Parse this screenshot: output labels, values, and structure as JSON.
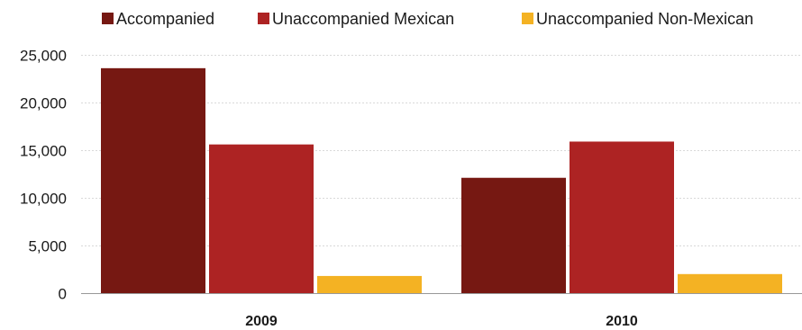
{
  "chart_data": {
    "type": "bar",
    "categories": [
      "2009",
      "2010"
    ],
    "series": [
      {
        "name": "Accompanied",
        "color": "#761812",
        "values": [
          23600,
          12100
        ]
      },
      {
        "name": "Unaccompanied Mexican",
        "color": "#ad2323",
        "values": [
          15600,
          15900
        ]
      },
      {
        "name": "Unaccompanied Non-Mexican",
        "color": "#f4b223",
        "values": [
          1800,
          2000
        ]
      }
    ],
    "ylim": [
      0,
      25000
    ],
    "yticks": [
      "0",
      "5,000",
      "10,000",
      "15,000",
      "20,000",
      "25,000"
    ],
    "ytick_values": [
      0,
      5000,
      10000,
      15000,
      20000,
      25000
    ],
    "grid": true,
    "legend_position": "top"
  }
}
